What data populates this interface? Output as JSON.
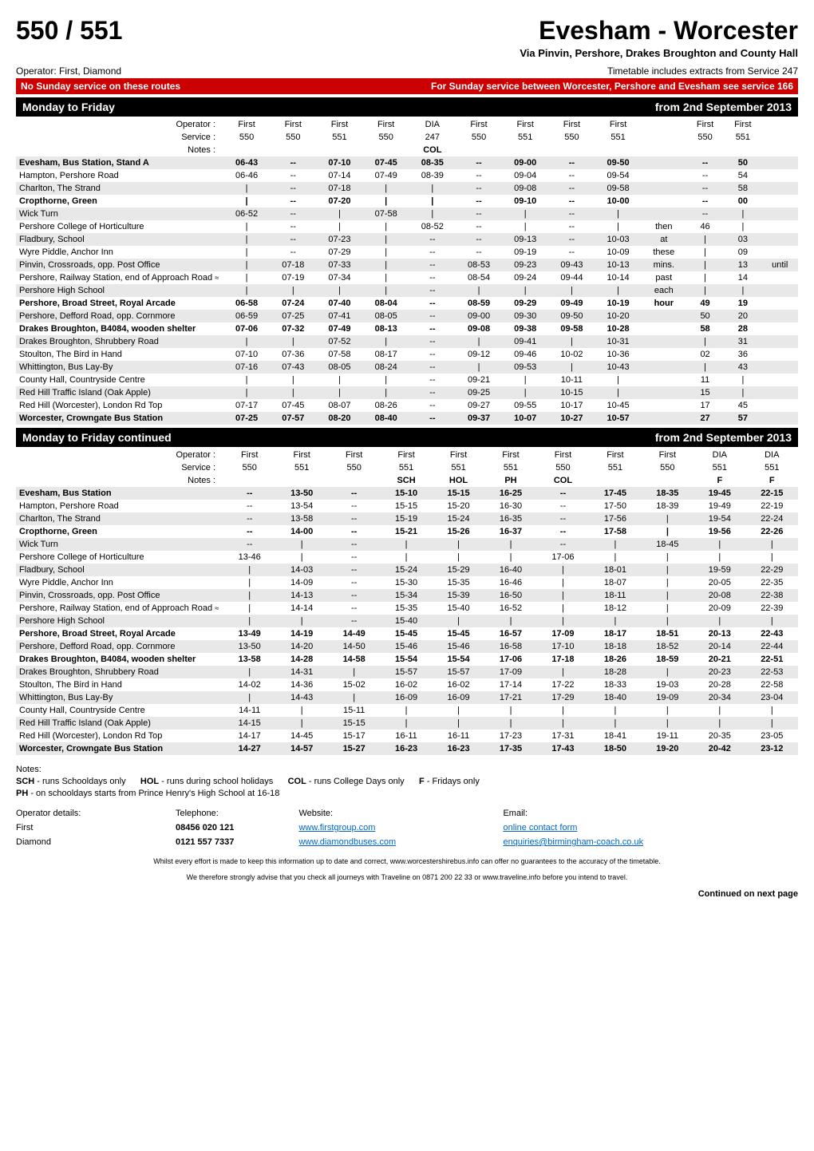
{
  "header": {
    "route_number": "550 / 551",
    "route_name": "Evesham - Worcester",
    "via": "Via Pinvin, Pershore, Drakes Broughton and County Hall",
    "operators": "Operator: First, Diamond",
    "timetable_note": "Timetable includes extracts from Service 247",
    "red_bar_left": "No Sunday service on these routes",
    "red_bar_right": "For Sunday service between Worcester, Pershore and Evesham see service 166"
  },
  "section1": {
    "title_left": "Monday to Friday",
    "title_right": "from 2nd September 2013",
    "header_rows": {
      "operator": [
        "Operator :",
        "First",
        "First",
        "First",
        "First",
        "DIA",
        "First",
        "First",
        "First",
        "First",
        "",
        "First",
        "First",
        ""
      ],
      "service": [
        "Service :",
        "550",
        "550",
        "551",
        "550",
        "247",
        "550",
        "551",
        "550",
        "551",
        "",
        "550",
        "551",
        ""
      ],
      "notes": [
        "Notes :",
        "",
        "",
        "",
        "",
        "COL",
        "",
        "",
        "",
        "",
        "",
        "",
        "",
        ""
      ]
    },
    "rows": [
      {
        "stop": "Evesham, Bus Station, Stand A",
        "bold": true,
        "stripe": true,
        "c": [
          "06-43",
          "--",
          "07-10",
          "07-45",
          "08-35",
          "--",
          "09-00",
          "--",
          "09-50",
          "",
          "--",
          "50",
          ""
        ]
      },
      {
        "stop": "Hampton, Pershore Road",
        "c": [
          "06-46",
          "--",
          "07-14",
          "07-49",
          "08-39",
          "--",
          "09-04",
          "--",
          "09-54",
          "",
          "--",
          "54",
          ""
        ]
      },
      {
        "stop": "Charlton, The Strand",
        "stripe": true,
        "c": [
          "|",
          "--",
          "07-18",
          "|",
          "|",
          "--",
          "09-08",
          "--",
          "09-58",
          "",
          "--",
          "58",
          ""
        ]
      },
      {
        "stop": "Cropthorne, Green",
        "bold": true,
        "c": [
          "|",
          "--",
          "07-20",
          "|",
          "|",
          "--",
          "09-10",
          "--",
          "10-00",
          "",
          "--",
          "00",
          ""
        ]
      },
      {
        "stop": "Wick Turn",
        "stripe": true,
        "c": [
          "06-52",
          "--",
          "|",
          "07-58",
          "|",
          "--",
          "|",
          "--",
          "|",
          "",
          "--",
          "|",
          ""
        ]
      },
      {
        "stop": "Pershore College of Horticulture",
        "c": [
          "|",
          "--",
          "|",
          "|",
          "08-52",
          "--",
          "|",
          "--",
          "|",
          "then",
          "46",
          "|",
          ""
        ]
      },
      {
        "stop": "Fladbury, School",
        "stripe": true,
        "c": [
          "|",
          "--",
          "07-23",
          "|",
          "--",
          "--",
          "09-13",
          "--",
          "10-03",
          "at",
          "|",
          "03",
          ""
        ]
      },
      {
        "stop": "Wyre Piddle, Anchor Inn",
        "c": [
          "|",
          "--",
          "07-29",
          "|",
          "--",
          "--",
          "09-19",
          "--",
          "10-09",
          "these",
          "|",
          "09",
          ""
        ]
      },
      {
        "stop": "Pinvin, Crossroads, opp. Post Office",
        "stripe": true,
        "c": [
          "|",
          "07-18",
          "07-33",
          "|",
          "--",
          "08-53",
          "09-23",
          "09-43",
          "10-13",
          "mins.",
          "|",
          "13",
          "until"
        ]
      },
      {
        "stop": "Pershore, Railway Station, end of Approach Road",
        "tp": true,
        "c": [
          "|",
          "07-19",
          "07-34",
          "|",
          "--",
          "08-54",
          "09-24",
          "09-44",
          "10-14",
          "past",
          "|",
          "14",
          ""
        ]
      },
      {
        "stop": "Pershore High School",
        "stripe": true,
        "c": [
          "|",
          "|",
          "|",
          "|",
          "--",
          "|",
          "|",
          "|",
          "|",
          "each",
          "|",
          "|",
          ""
        ]
      },
      {
        "stop": "Pershore, Broad Street, Royal Arcade",
        "bold": true,
        "c": [
          "06-58",
          "07-24",
          "07-40",
          "08-04",
          "--",
          "08-59",
          "09-29",
          "09-49",
          "10-19",
          "hour",
          "49",
          "19",
          ""
        ]
      },
      {
        "stop": "Pershore, Defford Road, opp. Cornmore",
        "stripe": true,
        "c": [
          "06-59",
          "07-25",
          "07-41",
          "08-05",
          "--",
          "09-00",
          "09-30",
          "09-50",
          "10-20",
          "",
          "50",
          "20",
          ""
        ]
      },
      {
        "stop": "Drakes Broughton, B4084, wooden shelter",
        "bold": true,
        "c": [
          "07-06",
          "07-32",
          "07-49",
          "08-13",
          "--",
          "09-08",
          "09-38",
          "09-58",
          "10-28",
          "",
          "58",
          "28",
          ""
        ]
      },
      {
        "stop": "Drakes Broughton, Shrubbery Road",
        "stripe": true,
        "c": [
          "|",
          "|",
          "07-52",
          "|",
          "--",
          "|",
          "09-41",
          "|",
          "10-31",
          "",
          "|",
          "31",
          ""
        ]
      },
      {
        "stop": "Stoulton, The Bird in Hand",
        "c": [
          "07-10",
          "07-36",
          "07-58",
          "08-17",
          "--",
          "09-12",
          "09-46",
          "10-02",
          "10-36",
          "",
          "02",
          "36",
          ""
        ]
      },
      {
        "stop": "Whittington, Bus Lay-By",
        "stripe": true,
        "c": [
          "07-16",
          "07-43",
          "08-05",
          "08-24",
          "--",
          "|",
          "09-53",
          "|",
          "10-43",
          "",
          "|",
          "43",
          ""
        ]
      },
      {
        "stop": "County Hall, Countryside Centre",
        "c": [
          "|",
          "|",
          "|",
          "|",
          "--",
          "09-21",
          "|",
          "10-11",
          "|",
          "",
          "11",
          "|",
          ""
        ]
      },
      {
        "stop": "Red Hill Traffic Island (Oak Apple)",
        "stripe": true,
        "c": [
          "|",
          "|",
          "|",
          "|",
          "--",
          "09-25",
          "|",
          "10-15",
          "|",
          "",
          "15",
          "|",
          ""
        ]
      },
      {
        "stop": "Red Hill (Worcester), London Rd Top",
        "c": [
          "07-17",
          "07-45",
          "08-07",
          "08-26",
          "--",
          "09-27",
          "09-55",
          "10-17",
          "10-45",
          "",
          "17",
          "45",
          ""
        ]
      },
      {
        "stop": "Worcester, Crowngate Bus Station",
        "bold": true,
        "stripe": true,
        "c": [
          "07-25",
          "07-57",
          "08-20",
          "08-40",
          "--",
          "09-37",
          "10-07",
          "10-27",
          "10-57",
          "",
          "27",
          "57",
          ""
        ]
      }
    ]
  },
  "section2": {
    "title_left": "Monday to Friday continued",
    "title_right": "from 2nd September 2013",
    "header_rows": {
      "operator": [
        "Operator :",
        "First",
        "First",
        "First",
        "First",
        "First",
        "First",
        "First",
        "First",
        "First",
        "DIA",
        "DIA"
      ],
      "service": [
        "Service :",
        "550",
        "551",
        "550",
        "551",
        "551",
        "551",
        "550",
        "551",
        "550",
        "551",
        "551"
      ],
      "notes": [
        "Notes :",
        "",
        "",
        "",
        "SCH",
        "HOL",
        "PH",
        "COL",
        "",
        "",
        "F",
        "F"
      ]
    },
    "rows": [
      {
        "stop": "Evesham, Bus Station",
        "bold": true,
        "stripe": true,
        "c": [
          "--",
          "13-50",
          "--",
          "15-10",
          "15-15",
          "16-25",
          "--",
          "17-45",
          "18-35",
          "19-45",
          "22-15"
        ]
      },
      {
        "stop": "Hampton, Pershore Road",
        "c": [
          "--",
          "13-54",
          "--",
          "15-15",
          "15-20",
          "16-30",
          "--",
          "17-50",
          "18-39",
          "19-49",
          "22-19"
        ]
      },
      {
        "stop": "Charlton, The Strand",
        "stripe": true,
        "c": [
          "--",
          "13-58",
          "--",
          "15-19",
          "15-24",
          "16-35",
          "--",
          "17-56",
          "|",
          "19-54",
          "22-24"
        ]
      },
      {
        "stop": "Cropthorne, Green",
        "bold": true,
        "c": [
          "--",
          "14-00",
          "--",
          "15-21",
          "15-26",
          "16-37",
          "--",
          "17-58",
          "|",
          "19-56",
          "22-26"
        ]
      },
      {
        "stop": "Wick Turn",
        "stripe": true,
        "c": [
          "--",
          "|",
          "--",
          "|",
          "|",
          "|",
          "--",
          "|",
          "18-45",
          "|",
          "|"
        ]
      },
      {
        "stop": "Pershore College of Horticulture",
        "c": [
          "13-46",
          "|",
          "--",
          "|",
          "|",
          "|",
          "17-06",
          "|",
          "|",
          "|",
          "|"
        ]
      },
      {
        "stop": "Fladbury, School",
        "stripe": true,
        "c": [
          "|",
          "14-03",
          "--",
          "15-24",
          "15-29",
          "16-40",
          "|",
          "18-01",
          "|",
          "19-59",
          "22-29"
        ]
      },
      {
        "stop": "Wyre Piddle, Anchor Inn",
        "c": [
          "|",
          "14-09",
          "--",
          "15-30",
          "15-35",
          "16-46",
          "|",
          "18-07",
          "|",
          "20-05",
          "22-35"
        ]
      },
      {
        "stop": "Pinvin, Crossroads, opp. Post Office",
        "stripe": true,
        "c": [
          "|",
          "14-13",
          "--",
          "15-34",
          "15-39",
          "16-50",
          "|",
          "18-11",
          "|",
          "20-08",
          "22-38"
        ]
      },
      {
        "stop": "Pershore, Railway Station, end of Approach Road",
        "tp": true,
        "c": [
          "|",
          "14-14",
          "--",
          "15-35",
          "15-40",
          "16-52",
          "|",
          "18-12",
          "|",
          "20-09",
          "22-39"
        ]
      },
      {
        "stop": "Pershore High School",
        "stripe": true,
        "c": [
          "|",
          "|",
          "--",
          "15-40",
          "|",
          "|",
          "|",
          "|",
          "|",
          "|",
          "|"
        ]
      },
      {
        "stop": "Pershore, Broad Street, Royal Arcade",
        "bold": true,
        "c": [
          "13-49",
          "14-19",
          "14-49",
          "15-45",
          "15-45",
          "16-57",
          "17-09",
          "18-17",
          "18-51",
          "20-13",
          "22-43"
        ]
      },
      {
        "stop": "Pershore, Defford Road, opp. Cornmore",
        "stripe": true,
        "c": [
          "13-50",
          "14-20",
          "14-50",
          "15-46",
          "15-46",
          "16-58",
          "17-10",
          "18-18",
          "18-52",
          "20-14",
          "22-44"
        ]
      },
      {
        "stop": "Drakes Broughton, B4084, wooden shelter",
        "bold": true,
        "c": [
          "13-58",
          "14-28",
          "14-58",
          "15-54",
          "15-54",
          "17-06",
          "17-18",
          "18-26",
          "18-59",
          "20-21",
          "22-51"
        ]
      },
      {
        "stop": "Drakes Broughton, Shrubbery Road",
        "stripe": true,
        "c": [
          "|",
          "14-31",
          "|",
          "15-57",
          "15-57",
          "17-09",
          "|",
          "18-28",
          "|",
          "20-23",
          "22-53"
        ]
      },
      {
        "stop": "Stoulton, The Bird in Hand",
        "c": [
          "14-02",
          "14-36",
          "15-02",
          "16-02",
          "16-02",
          "17-14",
          "17-22",
          "18-33",
          "19-03",
          "20-28",
          "22-58"
        ]
      },
      {
        "stop": "Whittington, Bus Lay-By",
        "stripe": true,
        "c": [
          "|",
          "14-43",
          "|",
          "16-09",
          "16-09",
          "17-21",
          "17-29",
          "18-40",
          "19-09",
          "20-34",
          "23-04"
        ]
      },
      {
        "stop": "County Hall, Countryside Centre",
        "c": [
          "14-11",
          "|",
          "15-11",
          "|",
          "|",
          "|",
          "|",
          "|",
          "|",
          "|",
          "|"
        ]
      },
      {
        "stop": "Red Hill Traffic Island (Oak Apple)",
        "stripe": true,
        "c": [
          "14-15",
          "|",
          "15-15",
          "|",
          "|",
          "|",
          "|",
          "|",
          "|",
          "|",
          "|"
        ]
      },
      {
        "stop": "Red Hill (Worcester), London Rd Top",
        "c": [
          "14-17",
          "14-45",
          "15-17",
          "16-11",
          "16-11",
          "17-23",
          "17-31",
          "18-41",
          "19-11",
          "20-35",
          "23-05"
        ]
      },
      {
        "stop": "Worcester, Crowngate Bus Station",
        "bold": true,
        "stripe": true,
        "c": [
          "14-27",
          "14-57",
          "15-27",
          "16-23",
          "16-23",
          "17-35",
          "17-43",
          "18-50",
          "19-20",
          "20-42",
          "23-12"
        ]
      }
    ]
  },
  "notes": {
    "title": "Notes:",
    "lines": [
      [
        "SCH",
        " - runs Schooldays only",
        "HOL",
        " - runs during school holidays",
        "COL",
        " - runs College Days only",
        "F",
        " - Fridays only"
      ],
      [
        "PH",
        " - on schooldays starts from Prince Henry's High School at 16-18"
      ]
    ]
  },
  "op_details": {
    "heading": "Operator details:",
    "cols": [
      "Telephone:",
      "Website:",
      "Email:"
    ],
    "rows": [
      {
        "name": "First",
        "tel": "08456 020 121",
        "web": "www.firstgroup.com",
        "email": "online contact form"
      },
      {
        "name": "Diamond",
        "tel": "0121 557 7337",
        "web": "www.diamondbuses.com",
        "email": "enquiries@birmingham-coach.co.uk"
      }
    ]
  },
  "fine1": "Whilst every effort is made to keep this information up to date and correct, www.worcestershirebus.info can offer no guarantees to the accuracy of the timetable.",
  "fine2": "We therefore strongly advise that you check all journeys with Traveline on 0871 200 22 33 or www.traveline.info before you intend to travel.",
  "continued": "Continued on next page"
}
